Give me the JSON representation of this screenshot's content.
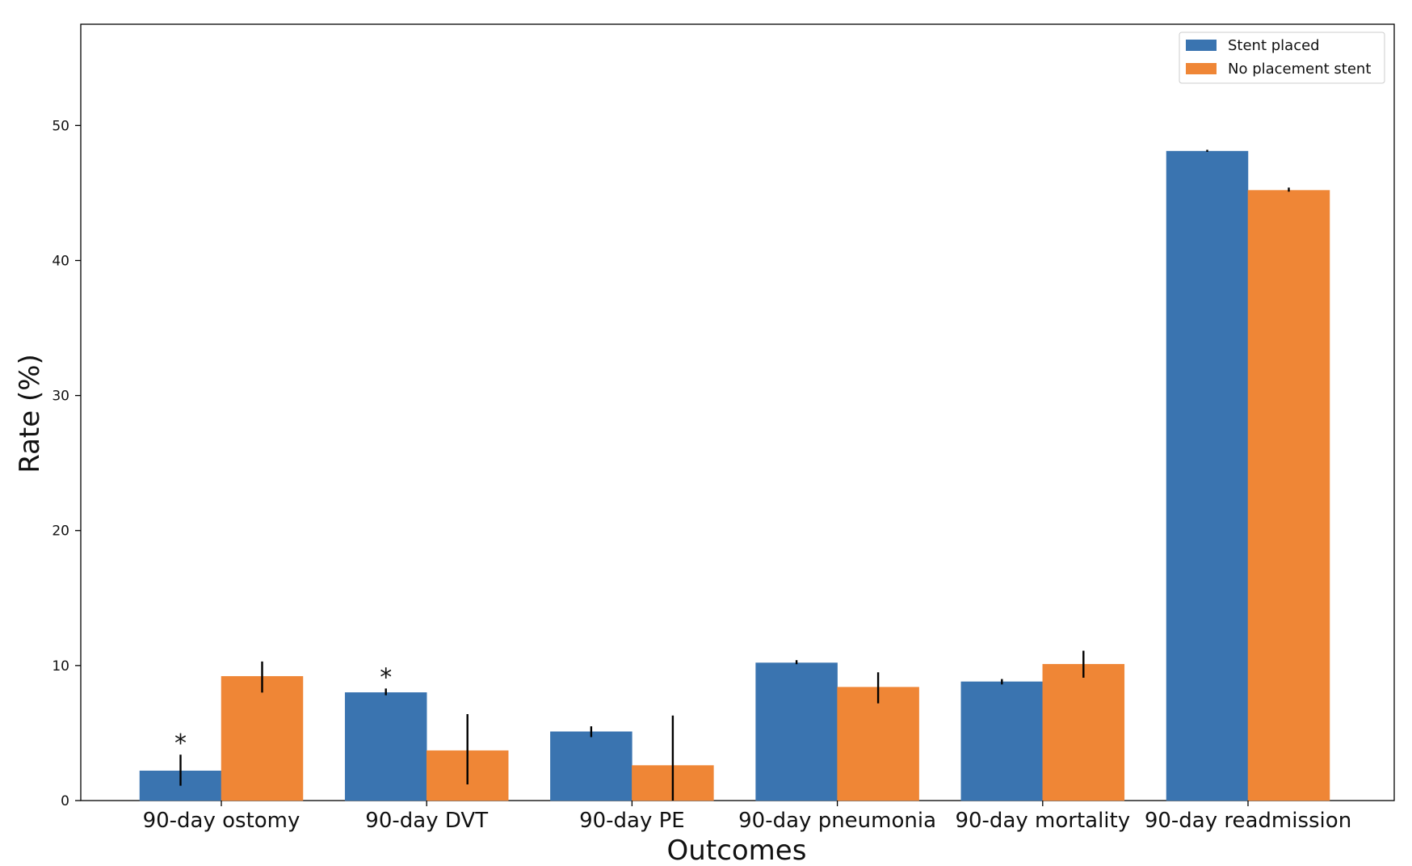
{
  "chart_data": {
    "type": "bar",
    "title": "",
    "xlabel": "Outcomes",
    "ylabel": "Rate (%)",
    "ylim": [
      0,
      57.5
    ],
    "yticks": [
      0,
      10,
      20,
      30,
      40,
      50
    ],
    "grid": false,
    "legend_position": "top-right",
    "categories": [
      "90-day ostomy",
      "90-day DVT",
      "90-day PE",
      "90-day pneumonia",
      "90-day mortality",
      "90-day readmission"
    ],
    "series": [
      {
        "name": "Stent placed",
        "color": "#3a74b0",
        "values": [
          2.2,
          8.0,
          5.1,
          10.2,
          8.8,
          48.1
        ],
        "error": [
          [
            1.1,
            3.4
          ],
          [
            7.8,
            8.3
          ],
          [
            4.7,
            5.5
          ],
          [
            10.1,
            10.4
          ],
          [
            8.6,
            9.0
          ],
          [
            48.05,
            48.2
          ]
        ]
      },
      {
        "name": "No placement stent",
        "color": "#ef8636",
        "values": [
          9.2,
          3.7,
          2.6,
          8.4,
          10.1,
          45.2
        ],
        "error": [
          [
            8.0,
            10.3
          ],
          [
            1.2,
            6.4
          ],
          [
            0.0,
            6.3
          ],
          [
            7.2,
            9.5
          ],
          [
            9.1,
            11.1
          ],
          [
            45.1,
            45.4
          ]
        ]
      }
    ],
    "annotations": [
      {
        "category_index": 0,
        "series_index": 0,
        "text": "*"
      },
      {
        "category_index": 1,
        "series_index": 0,
        "text": "*"
      }
    ]
  }
}
